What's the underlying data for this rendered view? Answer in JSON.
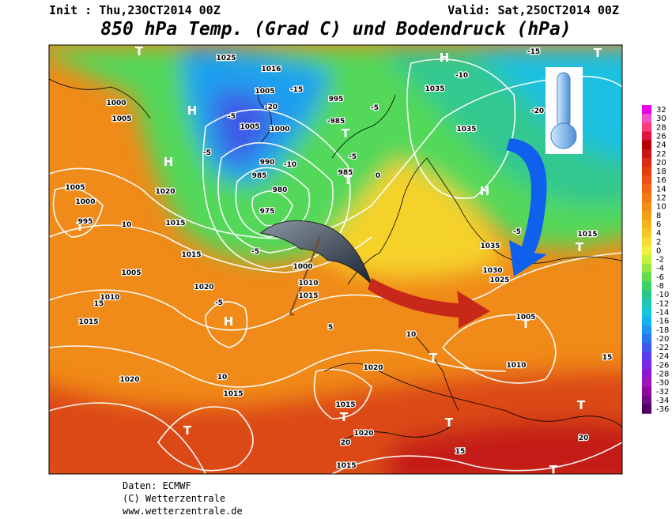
{
  "header": {
    "init": "Init : Thu,23OCT2014 00Z",
    "valid": "Valid: Sat,25OCT2014 00Z",
    "title": "850 hPa Temp. (Grad C) und Bodendruck (hPa)"
  },
  "colorbar": {
    "values": [
      32,
      30,
      28,
      26,
      24,
      22,
      20,
      18,
      16,
      14,
      12,
      10,
      8,
      6,
      4,
      2,
      0,
      -2,
      -4,
      -6,
      -8,
      -10,
      -12,
      -14,
      -16,
      -18,
      -20,
      -22,
      -24,
      -26,
      -28,
      -30,
      -32,
      -34,
      -36
    ],
    "colors": [
      "#e800e8",
      "#f050c8",
      "#ff3c78",
      "#e0143c",
      "#b40000",
      "#c81414",
      "#dc2814",
      "#e63c0a",
      "#f05014",
      "#f56414",
      "#f57814",
      "#f58c14",
      "#f5a014",
      "#f5b41e",
      "#f5c828",
      "#f5dc32",
      "#f0f03c",
      "#c8f03c",
      "#96e646",
      "#64dc50",
      "#3cd264",
      "#28c88c",
      "#1ec8b4",
      "#14c8dc",
      "#14b4f0",
      "#1e96f0",
      "#2878f0",
      "#3c5af0",
      "#5a3cf0",
      "#7828e6",
      "#8c14d2",
      "#a014be",
      "#8c0aa0",
      "#6e0a82",
      "#500064"
    ]
  },
  "map": {
    "labels": [
      "H",
      "H",
      "H",
      "H",
      "H",
      "T",
      "T",
      "T",
      "T",
      "T",
      "T",
      "T",
      "T",
      "T",
      "T",
      "T",
      "T",
      "T",
      "1025",
      "1016",
      "1005",
      "1000",
      "1005",
      "995",
      "-985",
      "1005",
      "1000",
      "990",
      "985",
      "980",
      "975",
      "985",
      "1035",
      "1035",
      "1020",
      "1005",
      "1000",
      "995",
      "1015",
      "1015",
      "1005",
      "1020",
      "1010",
      "1015",
      "1010",
      "1015",
      "1000",
      "1030",
      "1025",
      "1035",
      "1015",
      "1020",
      "1015",
      "1015",
      "1020",
      "1020",
      "1010",
      "1005",
      "1015",
      "10",
      "10",
      "10",
      "15",
      "15",
      "15",
      "20",
      "20",
      "-5",
      "-5",
      "-5",
      "-5",
      "-20",
      "-15",
      "-10",
      "5",
      "0",
      "-5",
      "-5",
      "-10",
      "-15",
      "-20",
      "-5"
    ]
  },
  "footer": [
    "Daten: ECMWF",
    "(C) Wetterzentrale",
    "www.wetterzentrale.de"
  ]
}
